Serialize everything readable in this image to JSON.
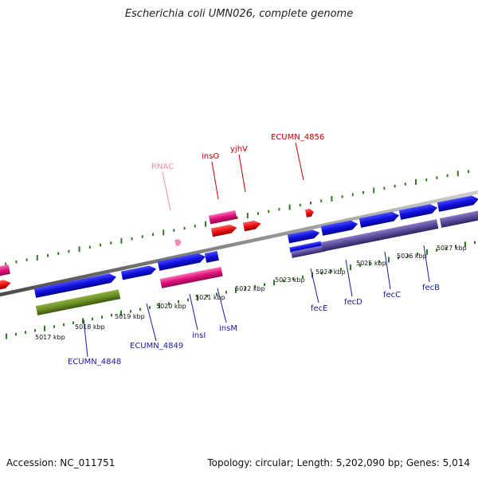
{
  "title": "Escherichia coli UMN026, complete genome",
  "footer": {
    "accession": "Accession: NC_011751",
    "topology": "Topology: circular; Length: 5,202,090 bp; Genes: 5,014"
  },
  "colors": {
    "backbone": "#8c8c8c",
    "tick": "#2e7d1e",
    "forward_cds": "#1010e0",
    "reverse_cds": "#e0107a",
    "rna": "#ee1111",
    "olive_block": "#6b8e23",
    "purple_block": "#5a4a9a",
    "label_blue": "#1a1aa0",
    "label_red": "#c00000",
    "label_pink": "#f08ab8"
  },
  "kbp_ticks": [
    "5017 kbp",
    "5018 kbp",
    "5019 kbp",
    "5020 kbp",
    "5021 kbp",
    "5022 kbp",
    "5023 kbp",
    "5024 kbp",
    "5025 kbp",
    "5026 kbp",
    "5027 kbp"
  ],
  "gene_labels": [
    {
      "text": "ECUMN_4848",
      "color": "label_blue"
    },
    {
      "text": "ECUMN_4849",
      "color": "label_blue"
    },
    {
      "text": "insI",
      "color": "label_blue"
    },
    {
      "text": "insM",
      "color": "label_blue"
    },
    {
      "text": "fecE",
      "color": "label_blue"
    },
    {
      "text": "fecD",
      "color": "label_blue"
    },
    {
      "text": "fecC",
      "color": "label_blue"
    },
    {
      "text": "fecB",
      "color": "label_blue"
    },
    {
      "text": "RNAC",
      "color": "label_pink"
    },
    {
      "text": "insO",
      "color": "label_red"
    },
    {
      "text": "yjhV",
      "color": "label_red"
    },
    {
      "text": "ECUMN_4856",
      "color": "label_red"
    }
  ]
}
